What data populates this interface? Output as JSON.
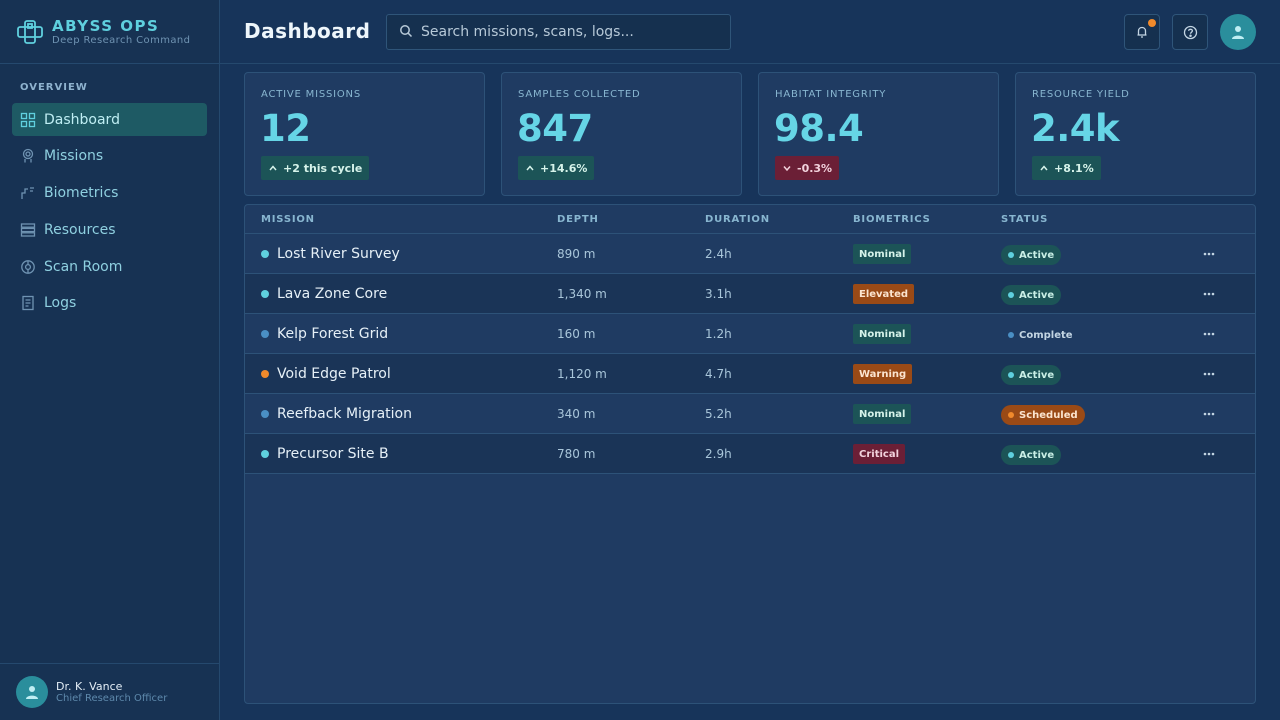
{
  "brand": {
    "title": "ABYSS OPS",
    "subtitle": "Deep Research Command"
  },
  "nav": {
    "section_label": "OVERVIEW",
    "items": [
      {
        "label": "Dashboard",
        "icon": "grid-icon",
        "active": true
      },
      {
        "label": "Missions",
        "icon": "diver-icon",
        "active": false
      },
      {
        "label": "Biometrics",
        "icon": "pulse-icon",
        "active": false
      },
      {
        "label": "Resources",
        "icon": "stack-icon",
        "active": false
      },
      {
        "label": "Scan Room",
        "icon": "radar-icon",
        "active": false
      },
      {
        "label": "Logs",
        "icon": "document-icon",
        "active": false
      }
    ]
  },
  "user": {
    "name": "Dr. K. Vance",
    "role": "Chief Research Officer"
  },
  "header": {
    "title": "Dashboard",
    "search_placeholder": "Search missions, scans, logs..."
  },
  "stats": [
    {
      "label": "ACTIVE MISSIONS",
      "value": "12",
      "delta": "+2 this cycle",
      "direction": "up"
    },
    {
      "label": "SAMPLES COLLECTED",
      "value": "847",
      "delta": "+14.6%",
      "direction": "up"
    },
    {
      "label": "HABITAT INTEGRITY",
      "value": "98.4",
      "delta": "-0.3%",
      "direction": "down"
    },
    {
      "label": "RESOURCE YIELD",
      "value": "2.4k",
      "delta": "+8.1%",
      "direction": "up"
    }
  ],
  "table": {
    "columns": [
      "MISSION",
      "DEPTH",
      "DURATION",
      "BIOMETRICS",
      "STATUS"
    ],
    "rows": [
      {
        "mission": "Lost River Survey",
        "dot_color": "#5fd0de",
        "depth": "890 m",
        "duration": "2.4h",
        "biometrics": "Nominal",
        "status": "Active"
      },
      {
        "mission": "Lava Zone Core",
        "dot_color": "#5fd0de",
        "depth": "1,340 m",
        "duration": "3.1h",
        "biometrics": "Elevated",
        "status": "Active"
      },
      {
        "mission": "Kelp Forest Grid",
        "dot_color": "#4a8fc4",
        "depth": "160 m",
        "duration": "1.2h",
        "biometrics": "Nominal",
        "status": "Complete"
      },
      {
        "mission": "Void Edge Patrol",
        "dot_color": "#f08a2c",
        "depth": "1,120 m",
        "duration": "4.7h",
        "biometrics": "Warning",
        "status": "Active"
      },
      {
        "mission": "Reefback Migration",
        "dot_color": "#4a8fc4",
        "depth": "340 m",
        "duration": "5.2h",
        "biometrics": "Nominal",
        "status": "Scheduled"
      },
      {
        "mission": "Precursor Site B",
        "dot_color": "#5fd0de",
        "depth": "780 m",
        "duration": "2.9h",
        "biometrics": "Critical",
        "status": "Active"
      }
    ]
  },
  "colors": {
    "accent": "#5fd0de",
    "alert": "#f08a2c",
    "critical": "#6b1f36"
  }
}
